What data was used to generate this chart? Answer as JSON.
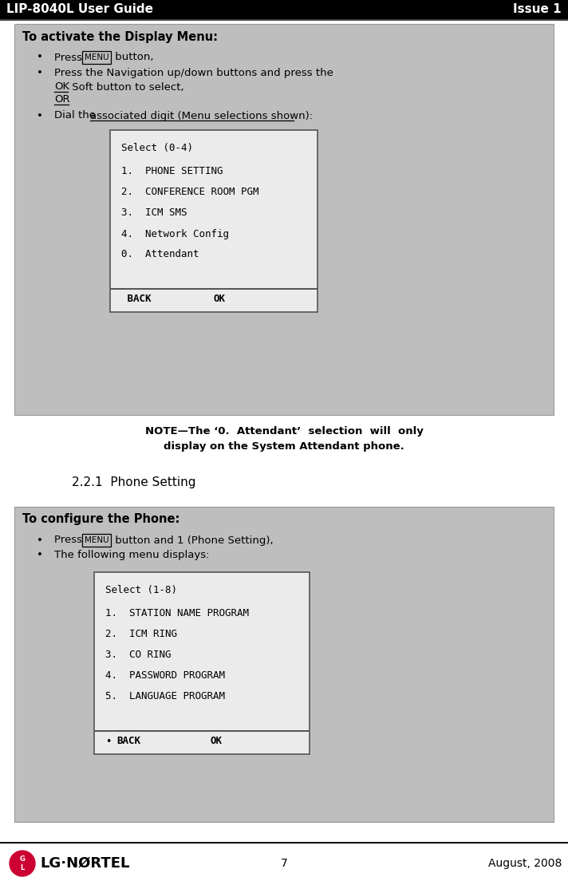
{
  "header_left": "LIP-8040L User Guide",
  "header_right": "Issue 1",
  "footer_page": "7",
  "footer_right": "August, 2008",
  "bg_color": "#ffffff",
  "header_bg": "#000000",
  "header_text_color": "#ffffff",
  "box1_bg": "#bebebe",
  "box1_title": "To activate the Display Menu:",
  "screen1_header": "Select (0-4)",
  "screen1_lines": [
    "1.  PHONE SETTING",
    "2.  CONFERENCE ROOM PGM",
    "3.  ICM SMS",
    "4.  Network Config",
    "0.  Attendant"
  ],
  "note_text": "NOTE—The ‘0.  Attendant’  selection  will  only\ndisplay on the System Attendant phone.",
  "section_title": "2.2.1  Phone Setting",
  "box2_bg": "#bebebe",
  "box2_title": "To configure the Phone:",
  "screen2_header": "Select (1-8)",
  "screen2_lines": [
    "1.  STATION NAME PROGRAM",
    "2.  ICM RING",
    "3.  CO RING",
    "4.  PASSWORD PROGRAM",
    "5.  LANGUAGE PROGRAM"
  ]
}
